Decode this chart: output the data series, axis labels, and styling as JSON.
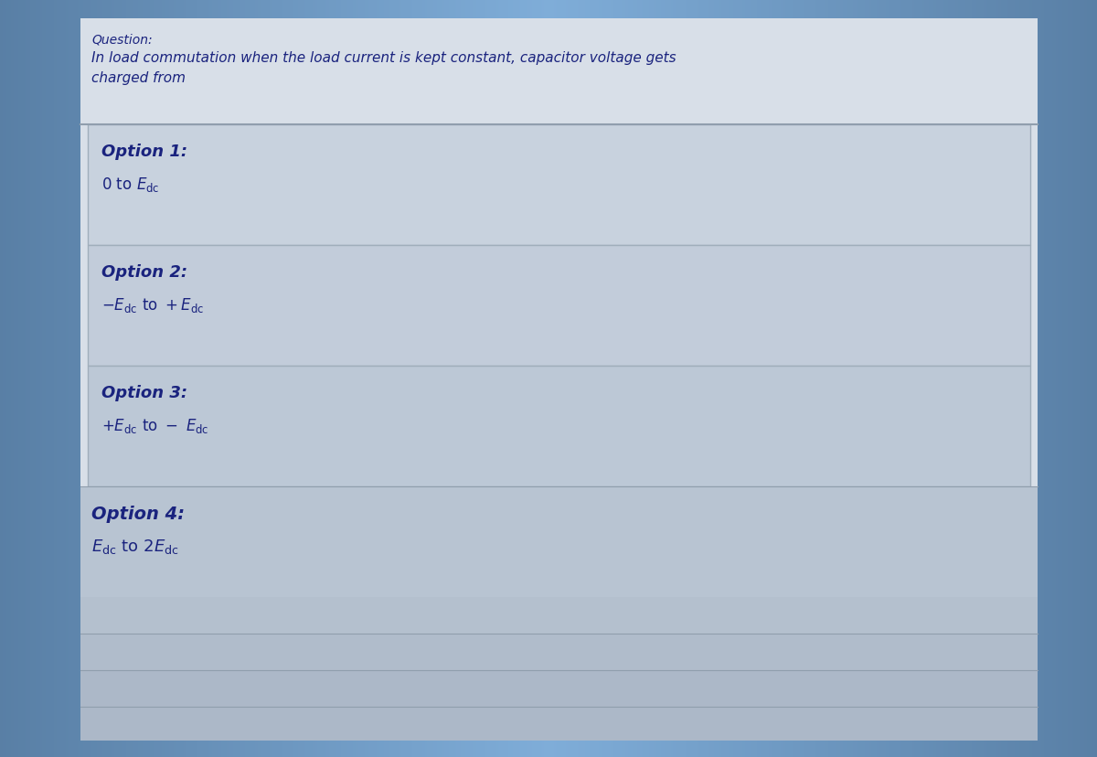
{
  "question_label": "Question:",
  "question_line1": "In load commutation when the load current is kept constant, capacitor voltage gets",
  "question_line2": "charged from",
  "options": [
    {
      "label": "Option 1:",
      "text": "0 to E_{dc}"
    },
    {
      "label": "Option 2:",
      "text": "-E_{dc} to +E_{dc}"
    },
    {
      "label": "Option 3:",
      "text": "+E_{dc} to - E_{dc}"
    },
    {
      "label": "Option 4:",
      "text": "E_{dc} to 2E_{dc}"
    }
  ],
  "outer_bg_top": "#3a5f85",
  "outer_bg_center": "#6a90b8",
  "panel_bg": "#d8dfe8",
  "option1_bg": "#c8d2de",
  "option2_bg": "#c2ccda",
  "option3_bg": "#bcc8d6",
  "option4_bg": "#b8c4d2",
  "bottom_strip1": "#b4c0ce",
  "bottom_strip2": "#b0bccb",
  "bottom_strip3": "#acb8c8",
  "box_border": "#a0aebb",
  "divider_color": "#909ead",
  "label_color": "#1a237e",
  "text_color": "#1a237e",
  "qlabel_fontsize": 10,
  "qtext_fontsize": 11,
  "opt_label_fontsize": 13,
  "opt_text_fontsize": 12,
  "fig_width": 12.0,
  "fig_height": 8.29,
  "dpi": 100
}
